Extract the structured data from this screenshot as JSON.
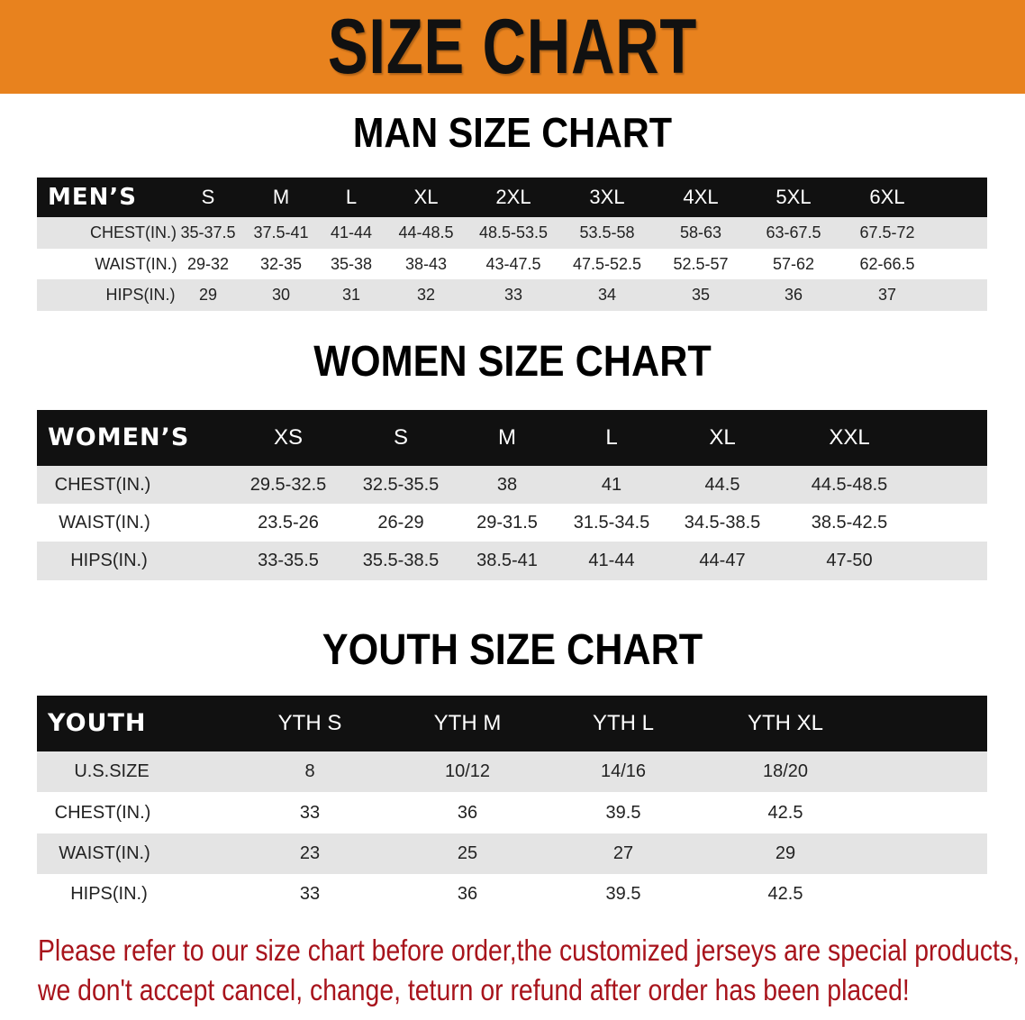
{
  "banner": {
    "title": "SIZE CHART",
    "color": "#e8821e"
  },
  "tables": [
    {
      "title": "MAN SIZE CHART",
      "header_label": "MEN’S",
      "sizes": [
        "S",
        "M",
        "L",
        "XL",
        "2XL",
        "3XL",
        "4XL",
        "5XL",
        "6XL"
      ],
      "rows": [
        {
          "label": "CHEST(IN.)",
          "values": [
            "35-37.5",
            "37.5-41",
            "41-44",
            "44-48.5",
            "48.5-53.5",
            "53.5-58",
            "58-63",
            "63-67.5",
            "67.5-72"
          ]
        },
        {
          "label": "WAIST(IN.)",
          "values": [
            "29-32",
            "32-35",
            "35-38",
            "38-43",
            "43-47.5",
            "47.5-52.5",
            "52.5-57",
            "57-62",
            "62-66.5"
          ]
        },
        {
          "label": "HIPS(IN.)",
          "values": [
            "29",
            "30",
            "31",
            "32",
            "33",
            "34",
            "35",
            "36",
            "37"
          ]
        }
      ]
    },
    {
      "title": "WOMEN SIZE CHART",
      "header_label": "WOMEN’S",
      "sizes": [
        "XS",
        "S",
        "M",
        "L",
        "XL",
        "XXL"
      ],
      "rows": [
        {
          "label": "CHEST(IN.)",
          "values": [
            "29.5-32.5",
            "32.5-35.5",
            "38",
            "41",
            "44.5",
            "44.5-48.5"
          ]
        },
        {
          "label": "WAIST(IN.)",
          "values": [
            "23.5-26",
            "26-29",
            "29-31.5",
            "31.5-34.5",
            "34.5-38.5",
            "38.5-42.5"
          ]
        },
        {
          "label": "HIPS(IN.)",
          "values": [
            "33-35.5",
            "35.5-38.5",
            "38.5-41",
            "41-44",
            "44-47",
            "47-50"
          ]
        }
      ]
    },
    {
      "title": "YOUTH SIZE CHART",
      "header_label": "YOUTH",
      "sizes": [
        "YTH S",
        "YTH M",
        "YTH L",
        "YTH XL"
      ],
      "rows": [
        {
          "label": "U.S.SIZE",
          "values": [
            "8",
            "10/12",
            "14/16",
            "18/20"
          ]
        },
        {
          "label": "CHEST(IN.)",
          "values": [
            "33",
            "36",
            "39.5",
            "42.5"
          ]
        },
        {
          "label": "WAIST(IN.)",
          "values": [
            "23",
            "25",
            "27",
            "29"
          ]
        },
        {
          "label": "HIPS(IN.)",
          "values": [
            "33",
            "36",
            "39.5",
            "42.5"
          ]
        }
      ]
    }
  ],
  "notice": {
    "lines": [
      "Please refer to our size chart before order,the customized jerseys are special products,",
      "we don't accept cancel, change, teturn or refund after order has been placed!"
    ],
    "color": "#a8141c"
  }
}
